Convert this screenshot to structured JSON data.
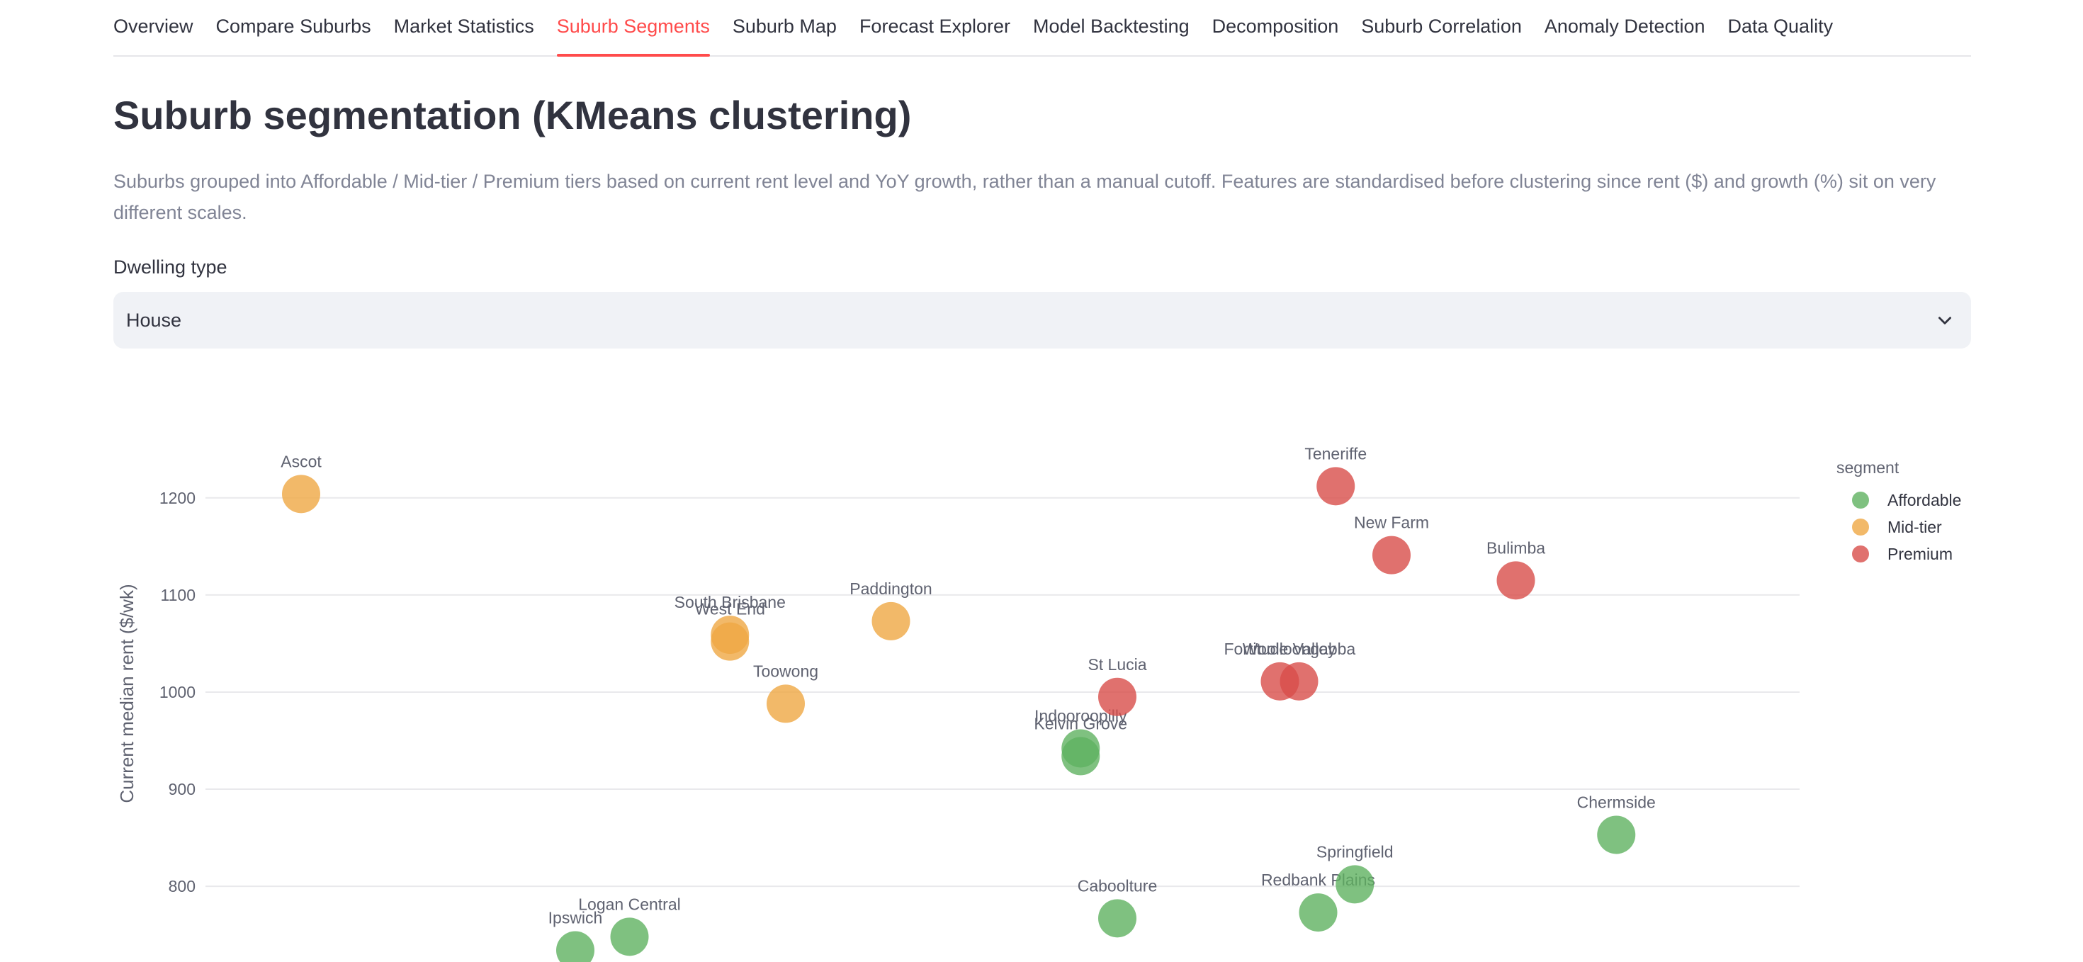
{
  "tabs": [
    {
      "label": "Overview",
      "active": false
    },
    {
      "label": "Compare Suburbs",
      "active": false
    },
    {
      "label": "Market Statistics",
      "active": false
    },
    {
      "label": "Suburb Segments",
      "active": true
    },
    {
      "label": "Suburb Map",
      "active": false
    },
    {
      "label": "Forecast Explorer",
      "active": false
    },
    {
      "label": "Model Backtesting",
      "active": false
    },
    {
      "label": "Decomposition",
      "active": false
    },
    {
      "label": "Suburb Correlation",
      "active": false
    },
    {
      "label": "Anomaly Detection",
      "active": false
    },
    {
      "label": "Data Quality",
      "active": false
    }
  ],
  "page": {
    "title": "Suburb segmentation (KMeans clustering)",
    "description": "Suburbs grouped into Affordable / Mid-tier / Premium tiers based on current rent level and YoY growth, rather than a manual cutoff. Features are standardised before clustering since rent ($) and growth (%) sit on very different scales."
  },
  "dwelling": {
    "label": "Dwelling type",
    "value": "House",
    "chevron_icon": "chevron-down-icon"
  },
  "chart_data": {
    "type": "scatter",
    "ylabel": "Current median rent ($/wk)",
    "xlabel": "",
    "yticks": [
      800,
      900,
      1000,
      1100,
      1200
    ],
    "ylim": [
      722,
      1275
    ],
    "xlim": [
      0,
      100
    ],
    "grid": true,
    "legend": {
      "title": "segment",
      "position": "right"
    },
    "series": [
      {
        "name": "Affordable",
        "color": "#5fb260",
        "points": [
          {
            "label": "Ipswich",
            "x": 23.2,
            "y": 734
          },
          {
            "label": "Logan Central",
            "x": 26.6,
            "y": 748
          },
          {
            "label": "Caboolture",
            "x": 57.2,
            "y": 767
          },
          {
            "label": "Redbank Plains",
            "x": 69.8,
            "y": 773
          },
          {
            "label": "Springfield",
            "x": 72.1,
            "y": 802
          },
          {
            "label": "Chermside",
            "x": 88.5,
            "y": 853
          },
          {
            "label": "Indooroopilly",
            "x": 54.9,
            "y": 942
          },
          {
            "label": "Kelvin Grove",
            "x": 54.9,
            "y": 934
          }
        ]
      },
      {
        "name": "Mid-tier",
        "color": "#efa743",
        "points": [
          {
            "label": "Ascot",
            "x": 6.0,
            "y": 1204
          },
          {
            "label": "South Brisbane",
            "x": 32.9,
            "y": 1059
          },
          {
            "label": "West End",
            "x": 32.9,
            "y": 1052
          },
          {
            "label": "Toowong",
            "x": 36.4,
            "y": 988
          },
          {
            "label": "Paddington",
            "x": 43.0,
            "y": 1073
          }
        ]
      },
      {
        "name": "Premium",
        "color": "#d84d4a",
        "points": [
          {
            "label": "Teneriffe",
            "x": 70.9,
            "y": 1212
          },
          {
            "label": "New Farm",
            "x": 74.4,
            "y": 1141
          },
          {
            "label": "Bulimba",
            "x": 82.2,
            "y": 1115
          },
          {
            "label": "St Lucia",
            "x": 57.2,
            "y": 995
          },
          {
            "label": "Fortitude Valley",
            "x": 67.4,
            "y": 1011
          },
          {
            "label": "Woolloongabba",
            "x": 68.6,
            "y": 1011
          }
        ]
      }
    ]
  }
}
